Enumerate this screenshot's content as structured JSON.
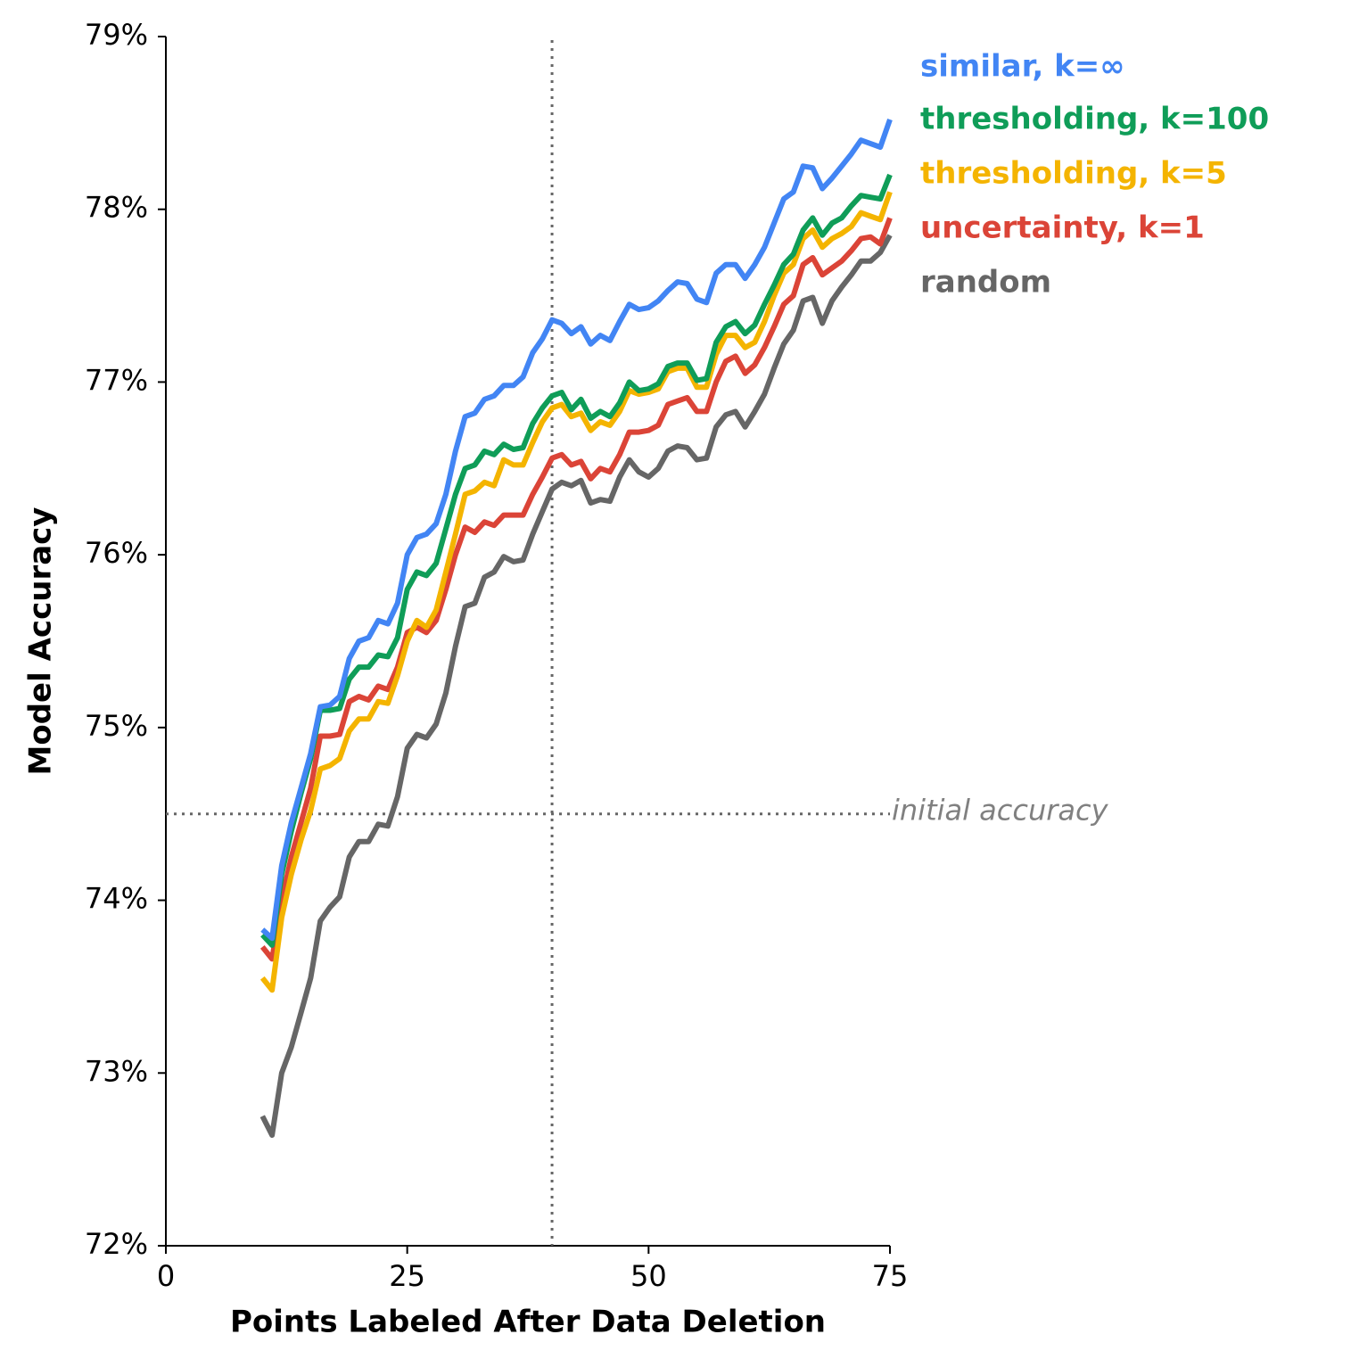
{
  "chart_data": {
    "type": "line",
    "xlabel": "Points Labeled After Data Deletion",
    "ylabel": "Model Accuracy",
    "x": [
      10,
      11,
      12,
      13,
      14,
      15,
      16,
      17,
      18,
      19,
      20,
      21,
      22,
      23,
      24,
      25,
      26,
      27,
      28,
      29,
      30,
      31,
      32,
      33,
      34,
      35,
      36,
      37,
      38,
      39,
      40,
      41,
      42,
      43,
      44,
      45,
      46,
      47,
      48,
      49,
      50,
      51,
      52,
      53,
      54,
      55,
      56,
      57,
      58,
      59,
      60,
      61,
      62,
      63,
      64,
      65,
      66,
      67,
      68,
      69,
      70,
      71,
      72,
      73,
      74,
      75
    ],
    "series": [
      {
        "name": "similar, k=∞",
        "color": "#4285f4",
        "values": [
          73.83,
          73.78,
          74.2,
          74.45,
          74.65,
          74.85,
          75.12,
          75.13,
          75.18,
          75.4,
          75.5,
          75.52,
          75.62,
          75.6,
          75.72,
          76.0,
          76.1,
          76.12,
          76.18,
          76.35,
          76.6,
          76.8,
          76.82,
          76.9,
          76.92,
          76.98,
          76.98,
          77.03,
          77.17,
          77.25,
          77.36,
          77.34,
          77.28,
          77.32,
          77.22,
          77.27,
          77.24,
          77.35,
          77.45,
          77.42,
          77.43,
          77.47,
          77.53,
          77.58,
          77.57,
          77.48,
          77.46,
          77.63,
          77.68,
          77.68,
          77.6,
          77.68,
          77.78,
          77.92,
          78.06,
          78.1,
          78.25,
          78.24,
          78.12,
          78.18,
          78.25,
          78.32,
          78.4,
          78.38,
          78.36,
          78.52
        ]
      },
      {
        "name": "thresholding, k=100",
        "color": "#0f9d58",
        "values": [
          73.8,
          73.74,
          74.15,
          74.4,
          74.62,
          74.82,
          75.1,
          75.1,
          75.11,
          75.28,
          75.35,
          75.35,
          75.42,
          75.41,
          75.52,
          75.8,
          75.9,
          75.88,
          75.95,
          76.15,
          76.35,
          76.5,
          76.52,
          76.6,
          76.58,
          76.64,
          76.61,
          76.62,
          76.76,
          76.85,
          76.92,
          76.94,
          76.84,
          76.9,
          76.79,
          76.83,
          76.8,
          76.88,
          77.0,
          76.95,
          76.96,
          76.99,
          77.09,
          77.11,
          77.11,
          77.01,
          77.02,
          77.23,
          77.32,
          77.35,
          77.28,
          77.33,
          77.45,
          77.56,
          77.68,
          77.74,
          77.88,
          77.95,
          77.85,
          77.92,
          77.95,
          78.02,
          78.08,
          78.07,
          78.06,
          78.2
        ]
      },
      {
        "name": "thresholding, k=5",
        "color": "#f4b400",
        "values": [
          73.55,
          73.48,
          73.9,
          74.15,
          74.35,
          74.52,
          74.76,
          74.78,
          74.82,
          74.98,
          75.05,
          75.05,
          75.15,
          75.14,
          75.3,
          75.5,
          75.62,
          75.58,
          75.68,
          75.9,
          76.12,
          76.35,
          76.37,
          76.42,
          76.4,
          76.55,
          76.52,
          76.52,
          76.65,
          76.77,
          76.85,
          76.87,
          76.8,
          76.82,
          76.72,
          76.77,
          76.75,
          76.83,
          76.95,
          76.93,
          76.94,
          76.96,
          77.06,
          77.08,
          77.08,
          76.97,
          76.97,
          77.16,
          77.27,
          77.27,
          77.2,
          77.23,
          77.35,
          77.5,
          77.63,
          77.68,
          77.83,
          77.88,
          77.78,
          77.83,
          77.86,
          77.9,
          77.98,
          77.96,
          77.94,
          78.1
        ]
      },
      {
        "name": "uncertainty, k=1",
        "color": "#db4437",
        "values": [
          73.73,
          73.66,
          74.0,
          74.25,
          74.45,
          74.65,
          74.95,
          74.95,
          74.96,
          75.15,
          75.18,
          75.16,
          75.24,
          75.22,
          75.35,
          75.55,
          75.58,
          75.55,
          75.62,
          75.8,
          76.0,
          76.16,
          76.13,
          76.19,
          76.17,
          76.23,
          76.23,
          76.23,
          76.35,
          76.45,
          76.56,
          76.58,
          76.52,
          76.54,
          76.44,
          76.5,
          76.48,
          76.58,
          76.71,
          76.71,
          76.72,
          76.75,
          76.87,
          76.89,
          76.91,
          76.83,
          76.83,
          77.0,
          77.12,
          77.15,
          77.05,
          77.1,
          77.2,
          77.32,
          77.45,
          77.5,
          77.68,
          77.72,
          77.62,
          77.66,
          77.7,
          77.76,
          77.83,
          77.84,
          77.8,
          77.95
        ]
      },
      {
        "name": "random",
        "color": "#666666",
        "values": [
          72.75,
          72.64,
          73.0,
          73.15,
          73.35,
          73.55,
          73.88,
          73.96,
          74.02,
          74.25,
          74.34,
          74.34,
          74.44,
          74.43,
          74.6,
          74.88,
          74.96,
          74.94,
          75.02,
          75.2,
          75.47,
          75.7,
          75.72,
          75.87,
          75.9,
          75.99,
          75.96,
          75.97,
          76.12,
          76.25,
          76.38,
          76.42,
          76.4,
          76.43,
          76.3,
          76.32,
          76.31,
          76.45,
          76.55,
          76.48,
          76.45,
          76.5,
          76.6,
          76.63,
          76.62,
          76.55,
          76.56,
          76.74,
          76.81,
          76.83,
          76.74,
          76.83,
          76.93,
          77.08,
          77.22,
          77.3,
          77.47,
          77.49,
          77.34,
          77.47,
          77.55,
          77.62,
          77.7,
          77.7,
          77.75,
          77.85
        ]
      }
    ],
    "xlim": [
      0,
      75
    ],
    "xticks": [
      0,
      25,
      50,
      75
    ],
    "ylim": [
      72,
      79
    ],
    "yticks": [
      {
        "value": 72,
        "label": "72%"
      },
      {
        "value": 73,
        "label": "73%"
      },
      {
        "value": 74,
        "label": "74%"
      },
      {
        "value": 75,
        "label": "75%"
      },
      {
        "value": 76,
        "label": "76%"
      },
      {
        "value": 77,
        "label": "77%"
      },
      {
        "value": 78,
        "label": "78%"
      },
      {
        "value": 79,
        "label": "79%"
      }
    ],
    "vline_x": 40,
    "hline": {
      "value": 74.5,
      "label": "initial accuracy"
    }
  }
}
